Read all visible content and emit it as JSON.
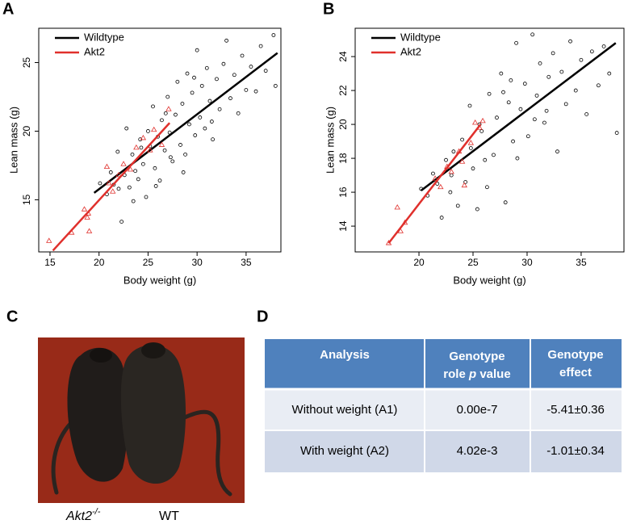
{
  "chart_data": [
    {
      "type": "scatter",
      "panel": "A",
      "x_label": "Body weight (g)",
      "y_label": "Lean mass (g)",
      "xlim": [
        13.85,
        38.55
      ],
      "ylim": [
        11.2,
        27.5
      ],
      "xticks": [
        15,
        20,
        25,
        30,
        35
      ],
      "yticks": [
        15,
        20,
        25
      ],
      "grid": false,
      "legend": "upper left",
      "series": [
        {
          "name": "Wildtype",
          "color": "#000000",
          "marker": "circle",
          "x": [
            20.1,
            20.8,
            21.2,
            21.5,
            21.9,
            22.3,
            22.6,
            22.8,
            23.1,
            23.4,
            23.7,
            24.0,
            24.2,
            24.5,
            24.8,
            25.0,
            25.2,
            25.5,
            25.7,
            26.0,
            26.2,
            26.4,
            26.7,
            27.0,
            27.2,
            27.5,
            27.8,
            28.0,
            28.3,
            28.5,
            28.8,
            29.0,
            29.2,
            29.5,
            29.8,
            30.0,
            30.3,
            30.5,
            30.8,
            31.0,
            31.3,
            31.6,
            32.0,
            32.3,
            32.7,
            33.0,
            33.4,
            33.8,
            34.2,
            34.6,
            35.0,
            35.5,
            36.0,
            36.5,
            37.0,
            37.8,
            38.0,
            22.0,
            23.5,
            25.8,
            27.3,
            28.6,
            29.7,
            31.5,
            24.3,
            26.8
          ],
          "values": [
            16.2,
            15.4,
            17.0,
            16.1,
            18.5,
            13.4,
            16.8,
            20.2,
            15.9,
            18.3,
            17.1,
            16.5,
            19.4,
            17.6,
            15.2,
            20.0,
            18.9,
            21.8,
            17.3,
            19.6,
            16.4,
            20.8,
            18.6,
            22.5,
            19.9,
            17.8,
            21.2,
            23.6,
            19.0,
            22.0,
            18.3,
            24.2,
            20.5,
            22.8,
            19.7,
            25.9,
            21.0,
            23.3,
            20.2,
            24.6,
            22.2,
            19.4,
            23.8,
            21.6,
            24.9,
            26.6,
            22.4,
            24.1,
            21.3,
            25.5,
            23.0,
            24.7,
            22.9,
            26.2,
            24.4,
            27.0,
            23.3,
            15.8,
            14.9,
            16.0,
            18.1,
            17.0,
            23.9,
            20.7,
            18.8,
            21.3
          ],
          "fit_x": [
            19.5,
            38.2
          ],
          "fit_values": [
            15.5,
            25.7
          ]
        },
        {
          "name": "Akt2",
          "color": "#e0302c",
          "marker": "triangle",
          "x": [
            14.9,
            17.2,
            18.5,
            18.8,
            19.0,
            18.9,
            20.8,
            21.4,
            22.0,
            23.2,
            23.8,
            24.5,
            25.2,
            25.6,
            26.4,
            27.1,
            21.0,
            22.5
          ],
          "values": [
            12.0,
            12.6,
            14.3,
            13.7,
            12.7,
            14.0,
            17.4,
            15.6,
            16.8,
            17.2,
            18.8,
            19.5,
            18.6,
            20.1,
            19.0,
            21.6,
            16.2,
            17.6
          ],
          "fit_x": [
            15.3,
            27.2
          ],
          "fit_values": [
            11.3,
            20.6
          ]
        }
      ]
    },
    {
      "type": "scatter",
      "panel": "B",
      "x_label": "Body weight (g)",
      "y_label": "Lean mass (g)",
      "xlim": [
        14.1,
        38.96
      ],
      "ylim": [
        12.48,
        25.67
      ],
      "xticks": [
        20,
        25,
        30,
        35
      ],
      "yticks": [
        14,
        16,
        18,
        20,
        22,
        24
      ],
      "grid": false,
      "legend": "upper left",
      "series": [
        {
          "name": "Wildtype",
          "color": "#000000",
          "marker": "circle",
          "x": [
            20.2,
            20.8,
            21.3,
            21.7,
            22.1,
            22.5,
            22.9,
            23.2,
            23.6,
            24.0,
            24.3,
            24.7,
            25.0,
            25.4,
            25.8,
            26.1,
            26.5,
            26.9,
            27.2,
            27.6,
            28.0,
            28.3,
            28.7,
            29.0,
            29.4,
            29.8,
            30.1,
            30.5,
            30.9,
            31.2,
            31.6,
            32.0,
            32.4,
            32.8,
            33.2,
            33.6,
            34.0,
            34.5,
            35.0,
            35.5,
            36.0,
            36.6,
            37.1,
            37.6,
            38.3,
            23.0,
            24.8,
            26.3,
            27.8,
            29.1,
            30.7,
            25.6,
            28.5,
            31.8
          ],
          "values": [
            16.2,
            15.8,
            17.1,
            16.5,
            14.5,
            17.9,
            16.0,
            18.4,
            15.2,
            19.1,
            16.6,
            21.1,
            17.4,
            15.0,
            19.6,
            17.9,
            21.8,
            18.2,
            20.4,
            23.0,
            15.4,
            21.3,
            19.0,
            24.8,
            20.9,
            22.4,
            19.3,
            25.3,
            21.7,
            23.6,
            20.1,
            22.8,
            24.2,
            18.4,
            23.1,
            21.2,
            24.9,
            22.0,
            23.8,
            20.6,
            24.3,
            22.3,
            24.6,
            23.0,
            19.5,
            17.0,
            18.6,
            16.3,
            21.9,
            18.0,
            20.3,
            20.0,
            22.6,
            20.8
          ],
          "fit_x": [
            20.2,
            38.2
          ],
          "fit_values": [
            16.1,
            24.8
          ]
        },
        {
          "name": "Akt2",
          "color": "#e0302c",
          "marker": "triangle",
          "x": [
            17.2,
            18.0,
            18.3,
            18.7,
            21.5,
            22.0,
            22.6,
            23.0,
            23.7,
            24.2,
            24.8,
            25.2,
            25.6,
            25.9,
            24.0
          ],
          "values": [
            13.0,
            15.1,
            13.7,
            14.2,
            16.8,
            16.3,
            17.5,
            17.2,
            18.4,
            16.4,
            18.9,
            20.1,
            19.8,
            20.2,
            17.8
          ],
          "fit_x": [
            17.2,
            25.7
          ],
          "fit_values": [
            13.0,
            20.0
          ]
        }
      ]
    }
  ],
  "photo": {
    "panel": "C",
    "genotype": "Akt2",
    "superscript": "-/-",
    "control": "WT"
  },
  "table": {
    "panel": "D",
    "header": [
      "Analysis",
      {
        "text": "Genotype",
        "text2": "role",
        "italic": "p",
        "after": "value"
      },
      {
        "text": "Genotype",
        "text2": "effect"
      }
    ],
    "rows": [
      [
        "Without weight (A1)",
        "0.00e-7",
        "-5.41±0.36"
      ],
      [
        "With weight (A2)",
        "4.02e-3",
        "-1.01±0.34"
      ]
    ]
  }
}
